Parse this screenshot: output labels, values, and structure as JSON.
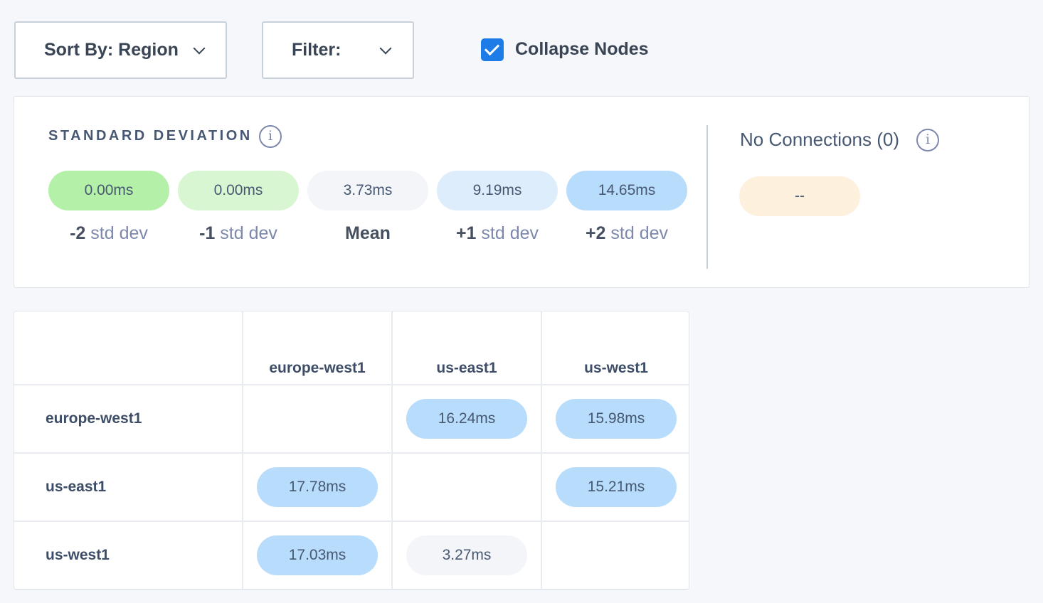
{
  "toolbar": {
    "sort_label": "Sort By: Region",
    "filter_label": "Filter:",
    "collapse_label": "Collapse Nodes",
    "collapse_checked": true
  },
  "std_dev": {
    "title": "STANDARD DEVIATION",
    "pills": [
      {
        "value": "0.00ms",
        "prefix": "-2",
        "suffix": "std dev",
        "color": "#b5f0a8"
      },
      {
        "value": "0.00ms",
        "prefix": "-1",
        "suffix": "std dev",
        "color": "#d8f6d2"
      },
      {
        "value": "3.73ms",
        "prefix": "Mean",
        "suffix": "",
        "color": "#f3f5f9"
      },
      {
        "value": "9.19ms",
        "prefix": "+1",
        "suffix": "std dev",
        "color": "#deedfb"
      },
      {
        "value": "14.65ms",
        "prefix": "+2",
        "suffix": "std dev",
        "color": "#b8dcfc"
      }
    ]
  },
  "no_connections": {
    "label": "No Connections (0)",
    "value": "--",
    "color": "#fdf0dc"
  },
  "matrix": {
    "columns": [
      "europe-west1",
      "us-east1",
      "us-west1"
    ],
    "rows": [
      {
        "label": "europe-west1",
        "cells": [
          "",
          "16.24ms",
          "15.98ms"
        ]
      },
      {
        "label": "us-east1",
        "cells": [
          "17.78ms",
          "",
          "15.21ms"
        ]
      },
      {
        "label": "us-west1",
        "cells": [
          "17.03ms",
          "3.27ms",
          ""
        ]
      }
    ]
  }
}
